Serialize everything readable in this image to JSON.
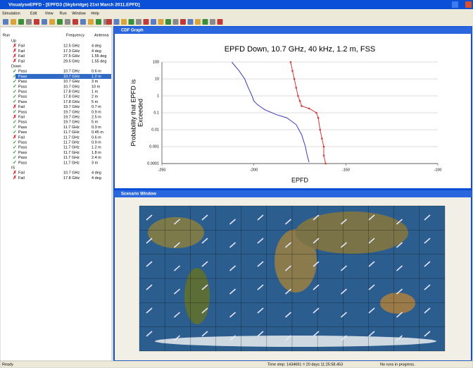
{
  "window_title": "VisualyseEPFD - [EPFD3 (Skybridge) 21st March 2011.EPFD]",
  "menu": [
    "Simulation",
    "Edit",
    "View",
    "Run",
    "Window",
    "Help"
  ],
  "tree": {
    "headers": [
      "Run",
      "Frequency",
      "Antenna"
    ],
    "groups": [
      {
        "name": "Up",
        "rows": [
          {
            "icon": "✗",
            "icon_color": "#d42020",
            "status": "Fail",
            "frequency": "12.5 GHz",
            "antenna": "4 deg"
          },
          {
            "icon": "✗",
            "icon_color": "#d42020",
            "status": "Fail",
            "frequency": "17.3 GHz",
            "antenna": "4 deg"
          },
          {
            "icon": "✗",
            "icon_color": "#d42020",
            "status": "Fail",
            "frequency": "27.5 GHz",
            "antenna": "1.55 deg"
          },
          {
            "icon": "✗",
            "icon_color": "#d42020",
            "status": "Fail",
            "frequency": "29.5 GHz",
            "antenna": "1.55 deg"
          }
        ]
      },
      {
        "name": "Down",
        "rows": [
          {
            "icon": "✓",
            "icon_color": "#2a9a2a",
            "status": "Pass",
            "frequency": "10.7 GHz",
            "antenna": "0.6 m"
          },
          {
            "icon": "✓",
            "icon_color": "#2a9a2a",
            "status": "Pass",
            "frequency": "10.7 GHz",
            "antenna": "1.2 m",
            "selected": true
          },
          {
            "icon": "✓",
            "icon_color": "#2a9a2a",
            "status": "Pass",
            "frequency": "10.7 GHz",
            "antenna": "3 m"
          },
          {
            "icon": "✓",
            "icon_color": "#2a9a2a",
            "status": "Pass",
            "frequency": "10.7 GHz",
            "antenna": "10 m"
          },
          {
            "icon": "✓",
            "icon_color": "#2a9a2a",
            "status": "Pass",
            "frequency": "17.8 GHz",
            "antenna": "1 m"
          },
          {
            "icon": "✓",
            "icon_color": "#2a9a2a",
            "status": "Pass",
            "frequency": "17.8 GHz",
            "antenna": "2 m"
          },
          {
            "icon": "✓",
            "icon_color": "#2a9a2a",
            "status": "Pass",
            "frequency": "17.8 GHz",
            "antenna": "5 m"
          },
          {
            "icon": "✗",
            "icon_color": "#d42020",
            "status": "Fail",
            "frequency": "19.7 GHz",
            "antenna": "0.7 m"
          },
          {
            "icon": "✓",
            "icon_color": "#2a9a2a",
            "status": "Pass",
            "frequency": "19.7 GHz",
            "antenna": "0.9 m"
          },
          {
            "icon": "✗",
            "icon_color": "#d42020",
            "status": "Fail",
            "frequency": "19.7 GHz",
            "antenna": "2.5 m"
          },
          {
            "icon": "✓",
            "icon_color": "#2a9a2a",
            "status": "Pass",
            "frequency": "19.7 GHz",
            "antenna": "5 m"
          },
          {
            "icon": "✓",
            "icon_color": "#2a9a2a",
            "status": "Pass",
            "frequency": "11.7 GHz",
            "antenna": "0.3 m"
          },
          {
            "icon": "✓",
            "icon_color": "#2a9a2a",
            "status": "Pass",
            "frequency": "11.7 GHz",
            "antenna": "0.45 m"
          },
          {
            "icon": "✗",
            "icon_color": "#d42020",
            "status": "Fail",
            "frequency": "11.7 GHz",
            "antenna": "0.6 m"
          },
          {
            "icon": "✓",
            "icon_color": "#2a9a2a",
            "status": "Pass",
            "frequency": "11.7 GHz",
            "antenna": "0.9 m"
          },
          {
            "icon": "✓",
            "icon_color": "#2a9a2a",
            "status": "Pass",
            "frequency": "11.7 GHz",
            "antenna": "1.2 m"
          },
          {
            "icon": "✓",
            "icon_color": "#2a9a2a",
            "status": "Pass",
            "frequency": "11.7 GHz",
            "antenna": "1.8 m"
          },
          {
            "icon": "✓",
            "icon_color": "#2a9a2a",
            "status": "Pass",
            "frequency": "11.7 GHz",
            "antenna": "2.4 m"
          },
          {
            "icon": "✓",
            "icon_color": "#2a9a2a",
            "status": "Pass",
            "frequency": "11.7 GHz",
            "antenna": "3 m"
          }
        ]
      },
      {
        "name": "IS",
        "rows": [
          {
            "icon": "✗",
            "icon_color": "#d42020",
            "status": "Fail",
            "frequency": "10.7 GHz",
            "antenna": "4 deg"
          },
          {
            "icon": "✗",
            "icon_color": "#d42020",
            "status": "Fail",
            "frequency": "17.8 GHz",
            "antenna": "4 deg"
          }
        ]
      }
    ]
  },
  "cdf_window_title": "CDF Graph",
  "chart_data": {
    "type": "line",
    "title": "EPFD Down, 10.7 GHz, 40 kHz, 1.2 m, FSS",
    "x_label": "EPFD",
    "y_label": [
      "Probability that EPFD is",
      "Exceeded"
    ],
    "xlim": [
      -250,
      -100
    ],
    "xticks": [
      -250,
      -200,
      -150,
      -100
    ],
    "ylim": [
      0.0001,
      100
    ],
    "yticks": [
      100,
      10,
      1,
      0.1,
      0.01,
      0.001,
      0.0001
    ],
    "ylog": true,
    "grid": true,
    "series": [
      {
        "color": "#3b3bb8",
        "markers": false,
        "x": [
          -212,
          -208,
          -205,
          -203,
          -201,
          -200,
          -198,
          -194,
          -188,
          -182,
          -177,
          -174,
          -172,
          -171,
          -170
        ],
        "values": [
          100,
          30,
          10,
          3,
          1,
          0.5,
          0.3,
          0.15,
          0.08,
          0.05,
          0.02,
          0.005,
          0.001,
          0.0003,
          0.00012
        ]
      },
      {
        "color": "#d43838",
        "markers": true,
        "x": [
          -180,
          -179,
          -178,
          -177,
          -176,
          -175,
          -174,
          -170,
          -166,
          -165,
          -164,
          -163,
          -162,
          -162,
          -161
        ],
        "values": [
          100,
          30,
          10,
          3,
          1,
          0.5,
          0.25,
          0.18,
          0.1,
          0.05,
          0.01,
          0.003,
          0.001,
          0.0003,
          0.0001
        ]
      }
    ]
  },
  "scenario_window_title": "Scenario Window",
  "status_bar": {
    "left": "Ready",
    "time_step": "Time step: 1434691 = 20 days 11:25:58.453",
    "runs": "No runs in progress."
  }
}
